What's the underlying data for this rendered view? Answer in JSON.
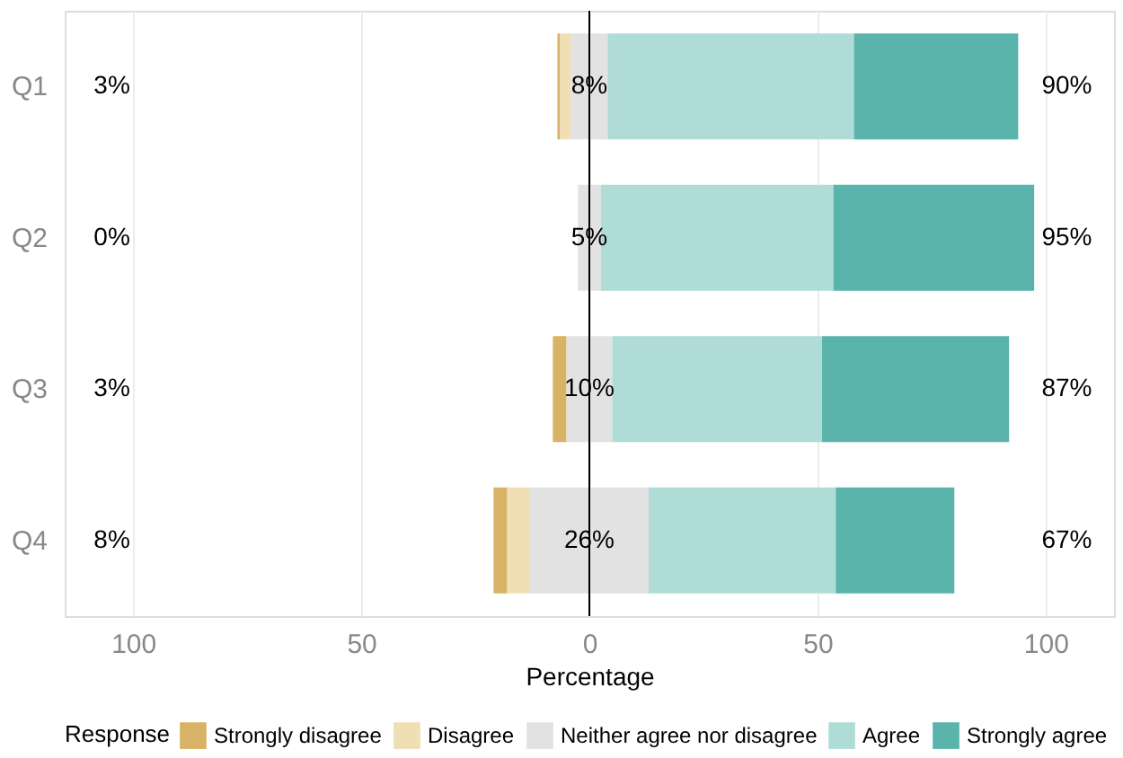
{
  "chart_data": {
    "type": "bar",
    "orientation": "horizontal",
    "xlabel": "Percentage",
    "legend_title": "Response",
    "legend": "bottom",
    "grid": "x",
    "categories": [
      "Q1",
      "Q2",
      "Q3",
      "Q4"
    ],
    "xlim": [
      -115,
      115
    ],
    "xticks": [
      {
        "value": -100,
        "label": "100"
      },
      {
        "value": -50,
        "label": "50"
      },
      0,
      50,
      100
    ],
    "series": [
      {
        "name": "Strongly disagree",
        "color": "#d8b365",
        "base": [
          -7,
          null,
          -8,
          -21
        ],
        "values": [
          0.5,
          0,
          3,
          3
        ]
      },
      {
        "name": "Disagree",
        "color": "#f0dfb4",
        "base": [
          -6.5,
          null,
          null,
          -18
        ],
        "values": [
          2.5,
          0,
          0,
          5
        ]
      },
      {
        "name": "Neither agree nor disagree",
        "color": "#e2e2e2",
        "base": [
          -4,
          -2.5,
          -5,
          -13
        ],
        "values": [
          8,
          5,
          10,
          26
        ]
      },
      {
        "name": "Agree",
        "color": "#b0dcd8",
        "base": [
          4,
          2.5,
          5,
          13
        ],
        "values": [
          54,
          51,
          46,
          41
        ]
      },
      {
        "name": "Strongly agree",
        "color": "#5ab4ac",
        "base": [
          58,
          53.5,
          51,
          54
        ],
        "values": [
          36,
          44,
          41,
          26
        ]
      }
    ],
    "ref_lines": [
      {
        "axis": "x",
        "value": 0,
        "color": "#000000"
      }
    ],
    "annotations": [
      "3%",
      "0%",
      "3%",
      "8%",
      "8%",
      "5%",
      "10%",
      "26%",
      "90%",
      "95%",
      "87%",
      "67%"
    ]
  }
}
